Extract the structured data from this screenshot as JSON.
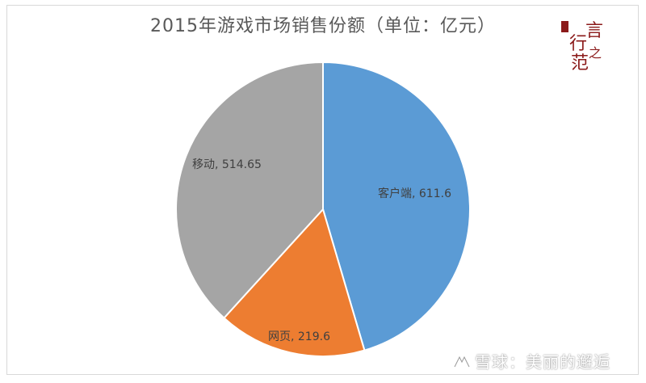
{
  "chart_data": {
    "type": "pie",
    "title": "2015年游戏市场销售份额（单位：亿元）",
    "slices": [
      {
        "label": "客户端",
        "value": 611.6,
        "color": "#5b9bd5"
      },
      {
        "label": "网页",
        "value": 219.6,
        "color": "#ed7d31"
      },
      {
        "label": "移动",
        "value": 514.65,
        "color": "#a5a5a5"
      }
    ],
    "start_angle_deg": 0,
    "direction": "clockwise",
    "data_labels": "category, value"
  },
  "logo": {
    "chars": [
      "言",
      "行",
      "之",
      "范"
    ]
  },
  "watermark": {
    "text": "雪球：美丽的邂逅"
  }
}
